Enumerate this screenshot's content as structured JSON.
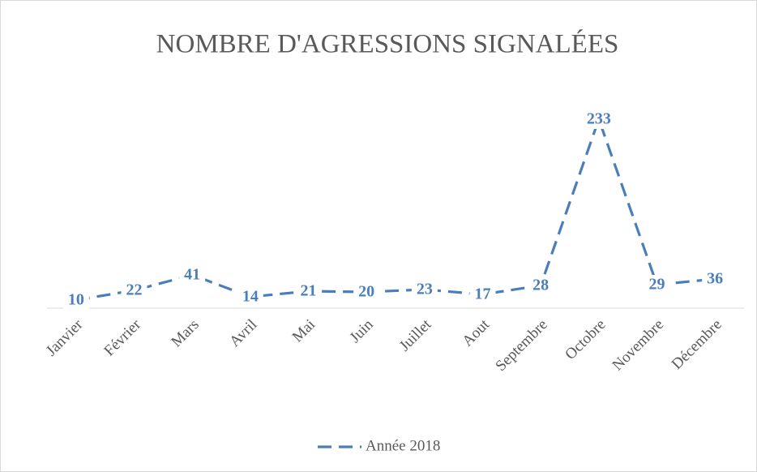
{
  "chart_data": {
    "type": "line",
    "title": "NOMBRE D'AGRESSIONS SIGNALÉES",
    "categories": [
      "Janvier",
      "Février",
      "Mars",
      "Avril",
      "Mai",
      "Juin",
      "Juillet",
      "Aout",
      "Septembre",
      "Octobre",
      "Novembre",
      "Décembre"
    ],
    "series": [
      {
        "name": "Année 2018",
        "color": "#4a7ebb",
        "values": [
          10,
          22,
          41,
          14,
          21,
          20,
          23,
          17,
          28,
          233,
          29,
          36
        ]
      }
    ],
    "ylim": [
      0,
      260
    ],
    "line_style": "dashed",
    "data_labels": true,
    "legend": "bottom"
  }
}
